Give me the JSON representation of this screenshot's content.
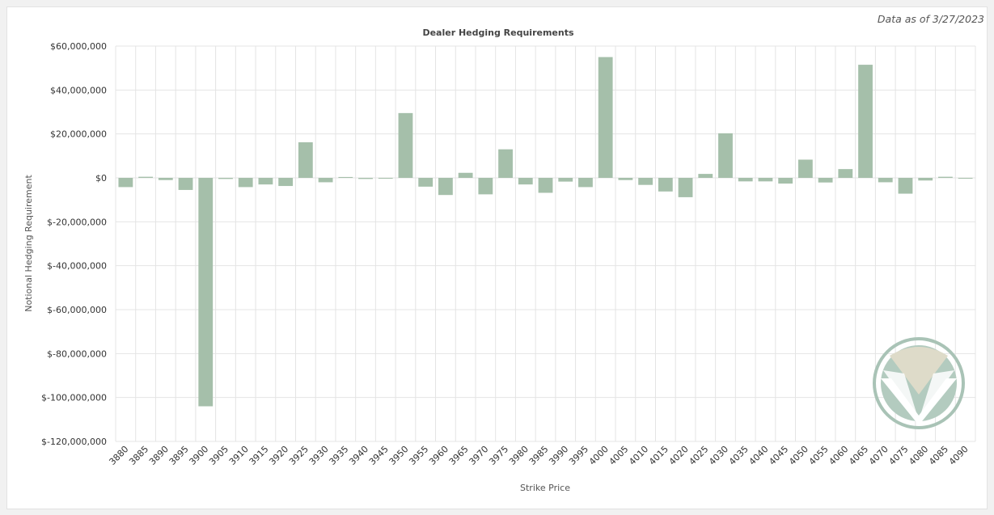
{
  "note": "Data as of 3/27/2023",
  "colors": {
    "bar": "#a5bfaa",
    "grid": "#e4e4e4",
    "background": "#ffffff"
  },
  "logo": {
    "name": "brand-logo-icon"
  },
  "chart_data": {
    "type": "bar",
    "title": "Dealer Hedging Requirements",
    "xlabel": "Strike Price",
    "ylabel": "Notional Hedging Requirement",
    "ylim": [
      -120000000,
      60000000
    ],
    "yticks": [
      {
        "value": 60000000,
        "label": "$60,000,000"
      },
      {
        "value": 40000000,
        "label": "$40,000,000"
      },
      {
        "value": 20000000,
        "label": "$20,000,000"
      },
      {
        "value": 0,
        "label": "$0"
      },
      {
        "value": -20000000,
        "label": "$-20,000,000"
      },
      {
        "value": -40000000,
        "label": "$-40,000,000"
      },
      {
        "value": -60000000,
        "label": "$-60,000,000"
      },
      {
        "value": -80000000,
        "label": "$-80,000,000"
      },
      {
        "value": -100000000,
        "label": "$-100,000,000"
      },
      {
        "value": -120000000,
        "label": "$-120,000,000"
      }
    ],
    "grid": true,
    "legend": "none",
    "categories": [
      "3880",
      "3885",
      "3890",
      "3895",
      "3900",
      "3905",
      "3910",
      "3915",
      "3920",
      "3925",
      "3930",
      "3935",
      "3940",
      "3945",
      "3950",
      "3955",
      "3960",
      "3965",
      "3970",
      "3975",
      "3980",
      "3985",
      "3990",
      "3995",
      "4000",
      "4005",
      "4010",
      "4015",
      "4020",
      "4025",
      "4030",
      "4035",
      "4040",
      "4045",
      "4050",
      "4055",
      "4060",
      "4065",
      "4070",
      "4075",
      "4080",
      "4085",
      "4090"
    ],
    "values": [
      -4200000,
      500000,
      -1000000,
      -5500000,
      -104000000,
      -500000,
      -4200000,
      -3000000,
      -3700000,
      16200000,
      -2000000,
      400000,
      -500000,
      -300000,
      29500000,
      -4000000,
      -7800000,
      2300000,
      -7500000,
      13000000,
      -3000000,
      -6800000,
      -1700000,
      -4200000,
      55000000,
      -1000000,
      -3200000,
      -6200000,
      -8800000,
      1800000,
      20300000,
      -1600000,
      -1600000,
      -2600000,
      8300000,
      -2100000,
      4000000,
      51500000,
      -2000000,
      -7200000,
      -1200000,
      500000,
      -300000
    ]
  }
}
